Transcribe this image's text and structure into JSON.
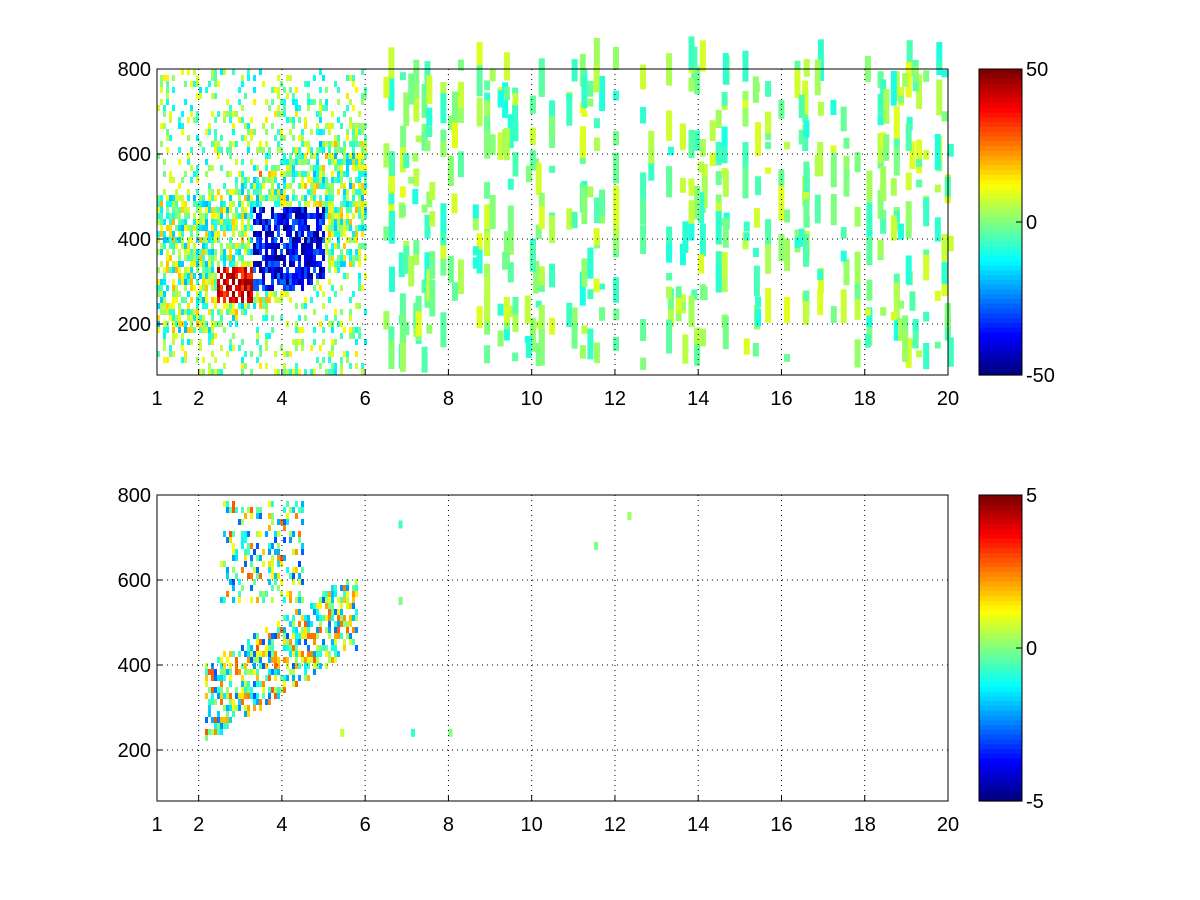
{
  "figure": {
    "background": "#ffffff"
  },
  "chart_data": [
    {
      "type": "heatmap",
      "title": "",
      "xlabel": "",
      "ylabel": "",
      "xlim": [
        1,
        20
      ],
      "ylim": [
        80,
        800
      ],
      "x_ticks": [
        1,
        2,
        4,
        6,
        8,
        10,
        12,
        14,
        16,
        18,
        20
      ],
      "y_ticks": [
        200,
        400,
        600,
        800
      ],
      "grid": true,
      "colormap": "jet",
      "color_range": [
        -50,
        50
      ],
      "colorbar_ticks": [
        -50,
        0,
        50
      ],
      "description": "Dense scattered cells between x=1 and x=6; strong positive ridge near y=280-320 at x=2.5-3.2, strong negative band y=300-500 at x=3.5-5; sparse near-zero vertical streaks from x=6 to x=20."
    },
    {
      "type": "heatmap",
      "title": "",
      "xlabel": "",
      "ylabel": "",
      "xlim": [
        1,
        20
      ],
      "ylim": [
        80,
        800
      ],
      "x_ticks": [
        1,
        2,
        4,
        6,
        8,
        10,
        12,
        14,
        16,
        18,
        20
      ],
      "y_ticks": [
        200,
        400,
        600,
        800
      ],
      "grid": true,
      "colormap": "jet",
      "color_range": [
        -5,
        5
      ],
      "colorbar_ticks": [
        -5,
        0,
        5
      ],
      "description": "Cells concentrated between x=2 and x=6, band rising from y=280 at x=2 to y=600 at x=5.5; almost empty beyond x=7."
    }
  ]
}
